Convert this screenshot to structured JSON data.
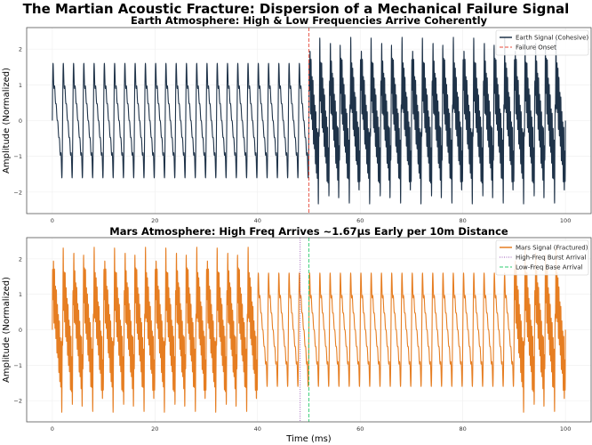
{
  "suptitle": "The Martian Acoustic Fracture: Dispersion of a Mechanical Failure Signal",
  "chart_data": [
    {
      "type": "line",
      "title": "Earth Atmosphere: High & Low Frequencies Arrive Coherently",
      "xlabel": "",
      "ylabel": "Amplitude (Normalized)",
      "xlim": [
        -5,
        105
      ],
      "ylim": [
        -2.6,
        2.6
      ],
      "xticks": [
        "0",
        "20",
        "40",
        "60",
        "80",
        "100"
      ],
      "yticks": [
        "−2",
        "−1",
        "0",
        "1",
        "2"
      ],
      "grid": true,
      "legend_position": "top-right",
      "series": [
        {
          "name": "Earth Signal (Cohesive)",
          "color": "#1f3349",
          "style": "solid",
          "x_range": [
            0,
            100
          ],
          "low_freq_period_ms": 2,
          "low_freq_peak": 1.6,
          "high_freq_windows": [
            [
              50,
              100
            ]
          ],
          "combined_peak": 2.35
        }
      ],
      "vlines": [
        {
          "name": "Failure Onset",
          "x": 50,
          "color": "#e74c3c",
          "style": "dashed"
        }
      ]
    },
    {
      "type": "line",
      "title": "Mars Atmosphere: High Freq Arrives ~1.67µs Early per 10m Distance",
      "xlabel": "Time (ms)",
      "ylabel": "Amplitude (Normalized)",
      "xlim": [
        -5,
        105
      ],
      "ylim": [
        -2.6,
        2.6
      ],
      "xticks": [
        "0",
        "20",
        "40",
        "60",
        "80",
        "100"
      ],
      "yticks": [
        "−2",
        "−1",
        "0",
        "1",
        "2"
      ],
      "grid": true,
      "legend_position": "top-right",
      "series": [
        {
          "name": "Mars Signal (Fractured)",
          "color": "#e67e22",
          "style": "solid",
          "x_range": [
            0,
            100
          ],
          "low_freq_period_ms": 2,
          "low_freq_peak": 1.6,
          "high_freq_windows": [
            [
              0,
              40
            ],
            [
              90,
              100
            ]
          ],
          "combined_peak": 2.35
        }
      ],
      "vlines": [
        {
          "name": "High-Freq Burst Arrival",
          "x": 48.3,
          "color": "#9b59b6",
          "style": "dotted"
        },
        {
          "name": "Low-Freq Base Arrival",
          "x": 50,
          "color": "#2ecc71",
          "style": "dashed"
        }
      ]
    }
  ]
}
